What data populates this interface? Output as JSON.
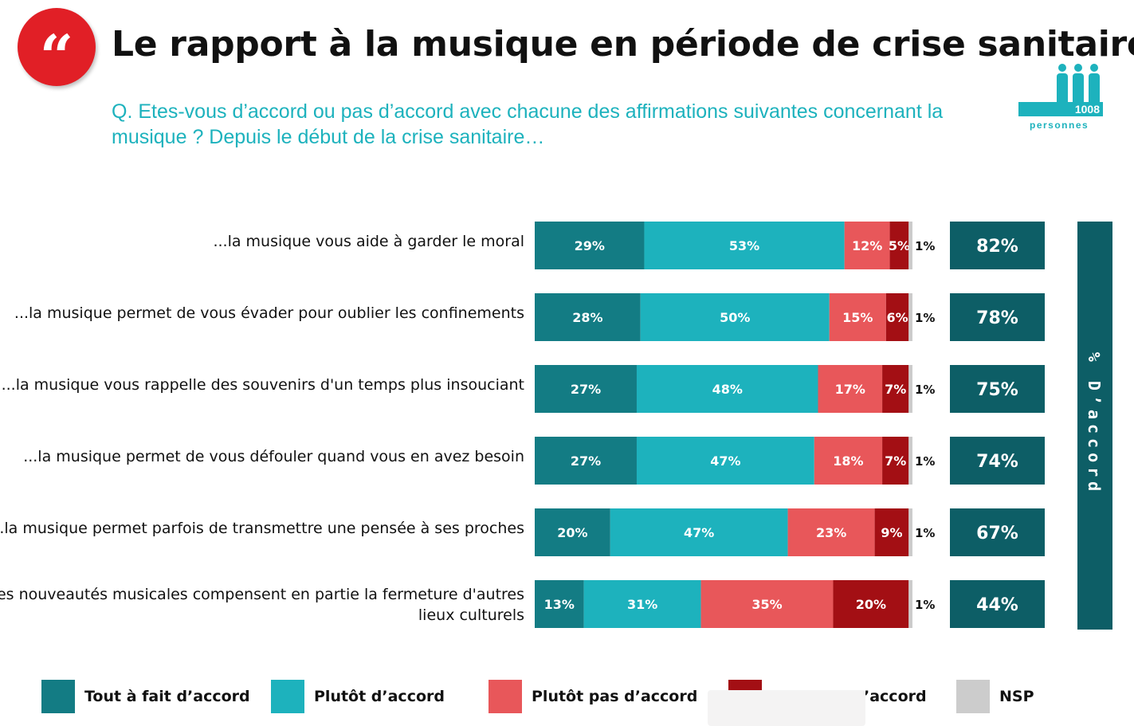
{
  "header": {
    "logo_glyph": "“",
    "title": "Le rapport à la musique en période de crise sanitaire",
    "question": "Q. Etes-vous d’accord ou pas d’accord avec chacune des affirmations suivantes concernant la musique ? Depuis le début de la crise sanitaire…",
    "sample_count": "1008",
    "sample_caption": "personnes"
  },
  "colors": {
    "tout_a_fait": "#137c84",
    "plutot": "#1db2bd",
    "plutot_pas": "#e8575a",
    "pas_du_tout": "#a30f14",
    "nsp": "#cccccc",
    "total_box": "#0d5e66"
  },
  "chart_data": {
    "type": "bar",
    "orientation": "horizontal-stacked-100",
    "categories": [
      "...la musique vous aide à garder le moral",
      "...la musique permet de vous évader pour oublier les confinements",
      "...la musique vous rappelle des souvenirs d'un temps plus insouciant",
      "...la musique permet de vous défouler quand vous en avez besoin",
      "...la musique permet parfois de transmettre une pensée à ses proches",
      "...les nouveautés musicales compensent en partie la fermeture d'autres lieux culturels"
    ],
    "series": [
      {
        "name": "Tout à fait d’accord",
        "color_key": "tout_a_fait",
        "values": [
          29,
          28,
          27,
          27,
          20,
          13
        ]
      },
      {
        "name": "Plutôt d’accord",
        "color_key": "plutot",
        "values": [
          53,
          50,
          48,
          47,
          47,
          31
        ]
      },
      {
        "name": "Plutôt pas d’accord",
        "color_key": "plutot_pas",
        "values": [
          12,
          15,
          17,
          18,
          23,
          35
        ]
      },
      {
        "name": "",
        "color_key": "pas_du_tout",
        "values": [
          5,
          6,
          7,
          7,
          9,
          20
        ]
      },
      {
        "name": "NSP",
        "color_key": "nsp",
        "values": [
          1,
          1,
          1,
          1,
          1,
          1
        ]
      }
    ],
    "totals": {
      "label": "% D’accord",
      "values": [
        82,
        78,
        75,
        74,
        67,
        44
      ]
    },
    "value_suffix": "%"
  },
  "legend": {
    "items": [
      {
        "label": "Tout à fait d’accord",
        "color_key": "tout_a_fait"
      },
      {
        "label": "Plutôt d’accord",
        "color_key": "plutot"
      },
      {
        "label": "Plutôt pas d’accord",
        "color_key": "plutot_pas"
      },
      {
        "label": "’accord",
        "color_key": "pas_du_tout"
      },
      {
        "label": "NSP",
        "color_key": "nsp"
      }
    ]
  }
}
